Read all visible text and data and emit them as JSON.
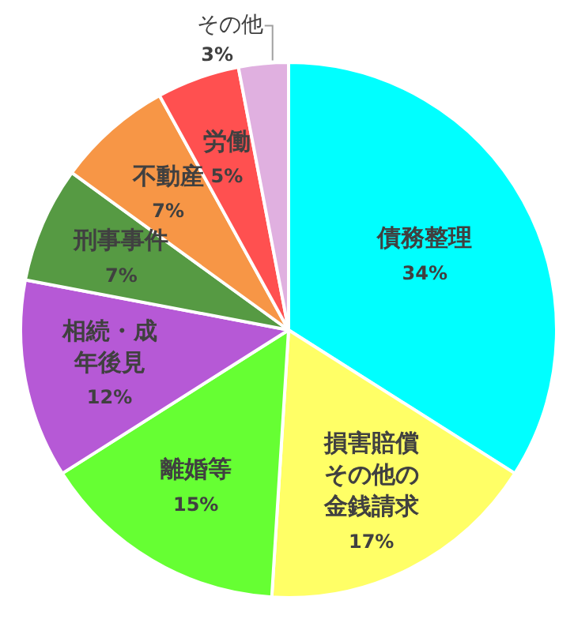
{
  "chart_data": {
    "type": "pie",
    "categories": [
      "債務整理",
      "損害賠償その他の金銭請求",
      "離婚等",
      "相続・成年後見",
      "刑事事件",
      "不動産",
      "労働",
      "その他"
    ],
    "values": [
      34,
      17,
      15,
      12,
      7,
      7,
      5,
      3
    ],
    "colors": [
      "#00ffff",
      "#ffff66",
      "#66ff33",
      "#b659d6",
      "#569a43",
      "#f79646",
      "#ff5050",
      "#e0b0e0"
    ],
    "value_labels": [
      "34%",
      "17%",
      "15%",
      "12%",
      "7%",
      "7%",
      "5%",
      "3%"
    ],
    "legend": false
  }
}
